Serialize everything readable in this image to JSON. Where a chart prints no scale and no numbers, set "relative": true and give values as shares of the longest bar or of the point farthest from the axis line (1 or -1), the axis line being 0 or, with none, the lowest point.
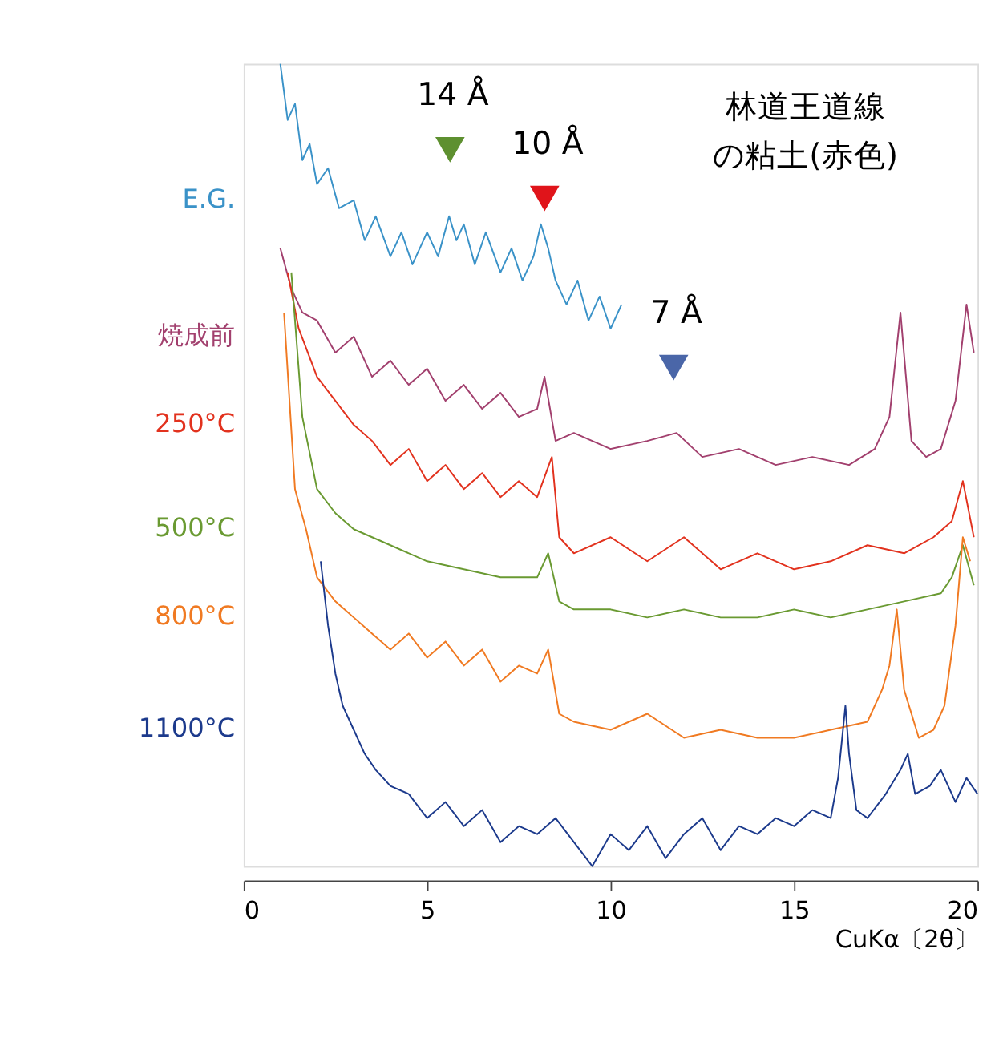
{
  "chart_data": {
    "type": "line",
    "relative": true,
    "xlabel": "CuKα〔2θ〕",
    "xlim": [
      0,
      20
    ],
    "xticks": [
      0,
      5,
      10,
      15,
      20
    ],
    "grid": false,
    "series": [
      {
        "name": "E.G.",
        "color": "#3a92c8",
        "x": [
          1.0,
          1.2,
          1.4,
          1.6,
          1.8,
          2.0,
          2.3,
          2.6,
          3.0,
          3.3,
          3.6,
          4.0,
          4.3,
          4.6,
          5.0,
          5.3,
          5.6,
          5.8,
          6.0,
          6.3,
          6.6,
          7.0,
          7.3,
          7.6,
          7.9,
          8.1,
          8.3,
          8.5,
          8.8,
          9.1,
          9.4,
          9.7,
          10.0,
          10.3
        ],
        "values": [
          1.0,
          0.93,
          0.95,
          0.88,
          0.9,
          0.85,
          0.87,
          0.82,
          0.83,
          0.78,
          0.81,
          0.76,
          0.79,
          0.75,
          0.79,
          0.76,
          0.81,
          0.78,
          0.8,
          0.75,
          0.79,
          0.74,
          0.77,
          0.73,
          0.76,
          0.8,
          0.77,
          0.73,
          0.7,
          0.73,
          0.68,
          0.71,
          0.67,
          0.7
        ]
      },
      {
        "name": "焼成前",
        "color": "#a2406e",
        "x": [
          1.0,
          1.3,
          1.6,
          2.0,
          2.5,
          3.0,
          3.5,
          4.0,
          4.5,
          5.0,
          5.5,
          6.0,
          6.5,
          7.0,
          7.5,
          8.0,
          8.2,
          8.5,
          9.0,
          10.0,
          11.0,
          11.8,
          12.5,
          13.5,
          14.5,
          15.5,
          16.5,
          17.2,
          17.6,
          17.9,
          18.2,
          18.6,
          19.0,
          19.4,
          19.7,
          19.9
        ],
        "values": [
          0.77,
          0.72,
          0.69,
          0.68,
          0.64,
          0.66,
          0.61,
          0.63,
          0.6,
          0.62,
          0.58,
          0.6,
          0.57,
          0.59,
          0.56,
          0.57,
          0.61,
          0.53,
          0.54,
          0.52,
          0.53,
          0.54,
          0.51,
          0.52,
          0.5,
          0.51,
          0.5,
          0.52,
          0.56,
          0.69,
          0.53,
          0.51,
          0.52,
          0.58,
          0.7,
          0.64
        ]
      },
      {
        "name": "250°C",
        "color": "#e2321e",
        "x": [
          1.2,
          1.5,
          2.0,
          2.5,
          3.0,
          3.5,
          4.0,
          4.5,
          5.0,
          5.5,
          6.0,
          6.5,
          7.0,
          7.5,
          8.0,
          8.4,
          8.6,
          9.0,
          10.0,
          11.0,
          12.0,
          13.0,
          14.0,
          15.0,
          16.0,
          17.0,
          18.0,
          18.8,
          19.3,
          19.6,
          19.9
        ],
        "values": [
          0.74,
          0.67,
          0.61,
          0.58,
          0.55,
          0.53,
          0.5,
          0.52,
          0.48,
          0.5,
          0.47,
          0.49,
          0.46,
          0.48,
          0.46,
          0.51,
          0.41,
          0.39,
          0.41,
          0.38,
          0.41,
          0.37,
          0.39,
          0.37,
          0.38,
          0.4,
          0.39,
          0.41,
          0.43,
          0.48,
          0.41
        ]
      },
      {
        "name": "500°C",
        "color": "#6a9a32",
        "x": [
          1.3,
          1.6,
          2.0,
          2.5,
          3.0,
          3.5,
          4.0,
          5.0,
          6.0,
          7.0,
          8.0,
          8.3,
          8.6,
          9.0,
          10.0,
          11.0,
          12.0,
          13.0,
          14.0,
          15.0,
          16.0,
          17.0,
          18.0,
          19.0,
          19.3,
          19.6,
          19.9
        ],
        "values": [
          0.74,
          0.56,
          0.47,
          0.44,
          0.42,
          0.41,
          0.4,
          0.38,
          0.37,
          0.36,
          0.36,
          0.39,
          0.33,
          0.32,
          0.32,
          0.31,
          0.32,
          0.31,
          0.31,
          0.32,
          0.31,
          0.32,
          0.33,
          0.34,
          0.36,
          0.4,
          0.35
        ]
      },
      {
        "name": "800°C",
        "color": "#f07a22",
        "x": [
          1.1,
          1.4,
          1.7,
          2.0,
          2.5,
          3.0,
          3.5,
          4.0,
          4.5,
          5.0,
          5.5,
          6.0,
          6.5,
          7.0,
          7.5,
          8.0,
          8.3,
          8.6,
          9.0,
          10.0,
          11.0,
          12.0,
          13.0,
          14.0,
          15.0,
          16.0,
          17.0,
          17.4,
          17.6,
          17.8,
          18.0,
          18.4,
          18.8,
          19.1,
          19.4,
          19.6,
          19.8
        ],
        "values": [
          0.69,
          0.47,
          0.42,
          0.36,
          0.33,
          0.31,
          0.29,
          0.27,
          0.29,
          0.26,
          0.28,
          0.25,
          0.27,
          0.23,
          0.25,
          0.24,
          0.27,
          0.19,
          0.18,
          0.17,
          0.19,
          0.16,
          0.17,
          0.16,
          0.16,
          0.17,
          0.18,
          0.22,
          0.25,
          0.32,
          0.22,
          0.16,
          0.17,
          0.2,
          0.3,
          0.41,
          0.38
        ]
      },
      {
        "name": "1100°C",
        "color": "#1c3a8c",
        "x": [
          2.1,
          2.3,
          2.5,
          2.7,
          3.0,
          3.3,
          3.6,
          4.0,
          4.5,
          5.0,
          5.5,
          6.0,
          6.5,
          7.0,
          7.5,
          8.0,
          8.5,
          9.0,
          9.5,
          10.0,
          10.5,
          11.0,
          11.5,
          12.0,
          12.5,
          13.0,
          13.5,
          14.0,
          14.5,
          15.0,
          15.5,
          16.0,
          16.2,
          16.4,
          16.5,
          16.7,
          17.0,
          17.5,
          17.9,
          18.1,
          18.3,
          18.7,
          19.0,
          19.4,
          19.7,
          20.0
        ],
        "values": [
          0.38,
          0.3,
          0.24,
          0.2,
          0.17,
          0.14,
          0.12,
          0.1,
          0.09,
          0.06,
          0.08,
          0.05,
          0.07,
          0.03,
          0.05,
          0.04,
          0.06,
          0.03,
          0.0,
          0.04,
          0.02,
          0.05,
          0.01,
          0.04,
          0.06,
          0.02,
          0.05,
          0.04,
          0.06,
          0.05,
          0.07,
          0.06,
          0.11,
          0.2,
          0.14,
          0.07,
          0.06,
          0.09,
          0.12,
          0.14,
          0.09,
          0.1,
          0.12,
          0.08,
          0.11,
          0.09
        ]
      }
    ],
    "annotations": [
      "14 Å",
      "10 Å",
      "7 Å",
      "林道王道線の粘土(赤色)"
    ]
  }
}
